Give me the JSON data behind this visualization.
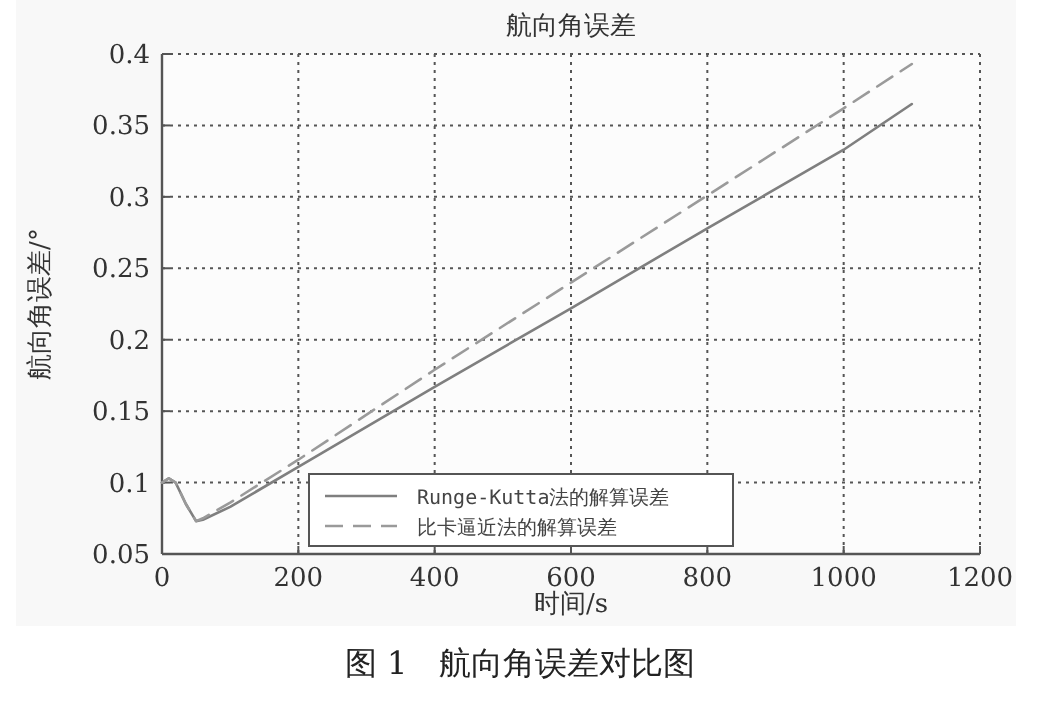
{
  "chart_data": {
    "type": "line",
    "title": "航向角误差",
    "xlabel": "时间/s",
    "ylabel": "航向角误差/°",
    "annotations": [
      "图 1　航向角误差对比图"
    ],
    "xlim": [
      0,
      1200
    ],
    "ylim": [
      0.05,
      0.4
    ],
    "xticks": [
      0,
      200,
      400,
      600,
      800,
      1000,
      1200
    ],
    "yticks": [
      {
        "value": 0.05,
        "label": "0.05"
      },
      {
        "value": 0.1,
        "label": "0.1"
      },
      {
        "value": 0.15,
        "label": "0.15"
      },
      {
        "value": 0.2,
        "label": "0.2"
      },
      {
        "value": 0.25,
        "label": "0.25"
      },
      {
        "value": 0.3,
        "label": "0.3"
      },
      {
        "value": 0.35,
        "label": "0.35"
      },
      {
        "value": 0.4,
        "label": "0.4"
      }
    ],
    "grid": true,
    "legend": "bottom",
    "series": [
      {
        "name": "Runge-Kutta法的解算误差",
        "color": "#7f7f7f",
        "line_style": "solid",
        "x": [
          0,
          10,
          20,
          35,
          50,
          60,
          100,
          200,
          400,
          600,
          800,
          1000,
          1100
        ],
        "values": [
          0.1,
          0.103,
          0.1,
          0.085,
          0.073,
          0.074,
          0.083,
          0.111,
          0.167,
          0.222,
          0.278,
          0.333,
          0.365
        ]
      },
      {
        "name": "比卡逼近法的解算误差",
        "color": "#9a9a9a",
        "line_style": "dashed",
        "x": [
          0,
          10,
          20,
          35,
          50,
          60,
          100,
          200,
          400,
          600,
          800,
          1000,
          1100
        ],
        "values": [
          0.1,
          0.103,
          0.1,
          0.085,
          0.073,
          0.075,
          0.086,
          0.116,
          0.179,
          0.24,
          0.301,
          0.362,
          0.393
        ]
      }
    ]
  }
}
